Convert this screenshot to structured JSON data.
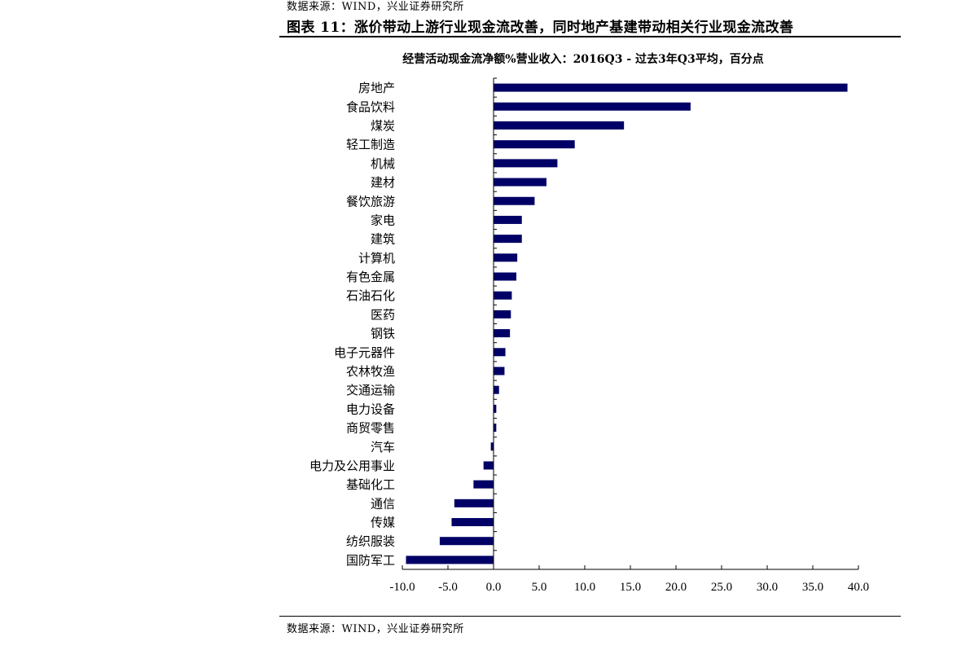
{
  "header": {
    "source": "数据来源：WIND，兴业证券研究所",
    "figure_title": "图表 11：涨价带动上游行业现金流改善，同时地产基建带动相关行业现金流改善"
  },
  "footer": {
    "source": "数据来源：WIND，兴业证券研究所"
  },
  "colors": {
    "bar": "#000066",
    "axis": "#000000"
  },
  "chart_data": {
    "type": "bar",
    "orientation": "horizontal",
    "title": "经营活动现金流净额%营业收入：2016Q3 - 过去3年Q3平均，百分点",
    "categories": [
      "房地产",
      "食品饮料",
      "煤炭",
      "轻工制造",
      "机械",
      "建材",
      "餐饮旅游",
      "家电",
      "建筑",
      "计算机",
      "有色金属",
      "石油石化",
      "医药",
      "钢铁",
      "电子元器件",
      "农林牧渔",
      "交通运输",
      "电力设备",
      "商贸零售",
      "汽车",
      "电力及公用事业",
      "基础化工",
      "通信",
      "传媒",
      "纺织服装",
      "国防军工"
    ],
    "values": [
      38.8,
      21.6,
      14.3,
      8.9,
      7.0,
      5.8,
      4.5,
      3.1,
      3.1,
      2.6,
      2.5,
      2.0,
      1.9,
      1.8,
      1.3,
      1.2,
      0.6,
      0.3,
      0.3,
      -0.3,
      -1.1,
      -2.2,
      -4.3,
      -4.6,
      -5.9,
      -9.6
    ],
    "xlim": [
      -10.0,
      40.0
    ],
    "xticks": [
      -10,
      -5,
      0,
      5,
      10,
      15,
      20,
      25,
      30,
      35,
      40
    ],
    "xtick_labels": [
      "-10.0",
      "-5.0",
      "0.0",
      "5.0",
      "10.0",
      "15.0",
      "20.0",
      "25.0",
      "30.0",
      "35.0",
      "40.0"
    ],
    "grid": false,
    "legend": "none"
  }
}
